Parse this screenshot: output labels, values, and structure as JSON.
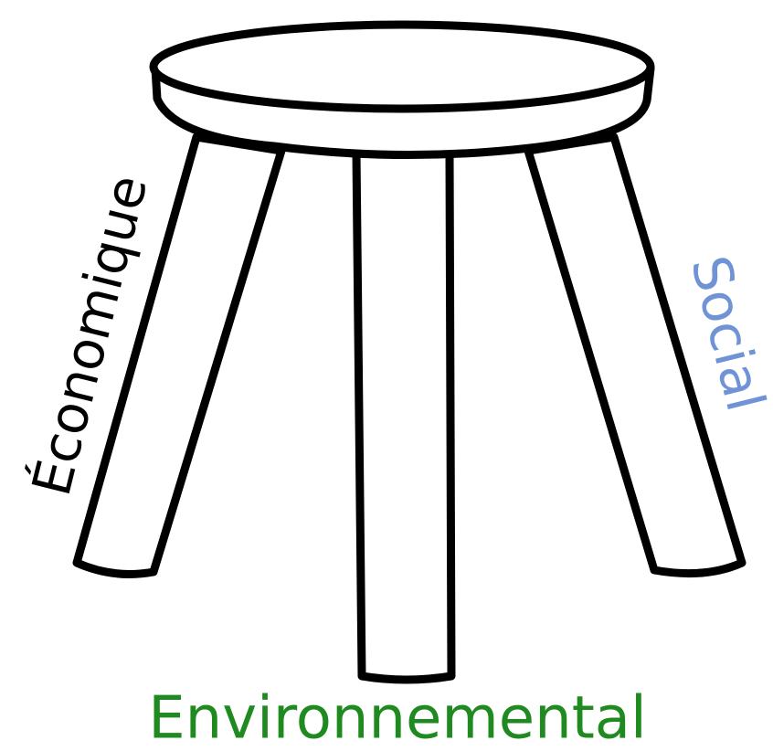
{
  "labels": {
    "economic": "Économique",
    "social": "Social",
    "environmental": "Environnemental"
  }
}
